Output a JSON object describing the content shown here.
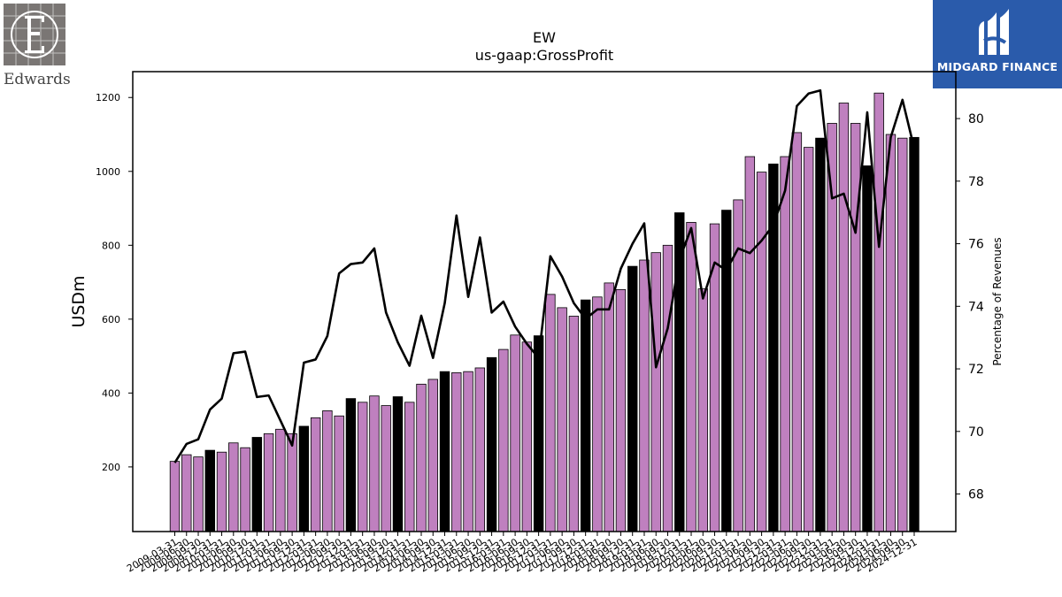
{
  "logos": {
    "left_text": "Edwards",
    "right_text": "MIDGARD FINANCE"
  },
  "colors": {
    "bar_default": "#bf80bf",
    "bar_highlight": "#000000",
    "line": "#000000",
    "brand_blue": "#2a5bab"
  },
  "chart_data": {
    "type": "bar+line",
    "title": "EW",
    "subtitle": "us-gaap:GrossProfit",
    "ylabel": "USDm",
    "y2label": "Percentage of Revenues",
    "ylim": [
      25,
      1270
    ],
    "y2lim": [
      66.8,
      81.5
    ],
    "yticks": [
      200,
      400,
      600,
      800,
      1000,
      1200
    ],
    "y2ticks": [
      68,
      70,
      72,
      74,
      76,
      78,
      80
    ],
    "grid": false,
    "categories": [
      "2009-03-31",
      "2009-06-30",
      "2009-09-30",
      "2009-12-31",
      "2010-03-31",
      "2010-06-30",
      "2010-09-30",
      "2010-12-31",
      "2011-03-31",
      "2011-06-30",
      "2011-09-30",
      "2011-12-31",
      "2012-03-31",
      "2012-06-30",
      "2012-09-30",
      "2012-12-31",
      "2013-03-31",
      "2013-06-30",
      "2013-09-30",
      "2013-12-31",
      "2014-03-31",
      "2014-06-30",
      "2014-09-30",
      "2014-12-31",
      "2015-03-31",
      "2015-06-30",
      "2015-09-30",
      "2015-12-31",
      "2016-03-31",
      "2016-06-30",
      "2016-09-30",
      "2016-12-31",
      "2017-03-31",
      "2017-06-30",
      "2017-09-30",
      "2017-12-31",
      "2018-03-31",
      "2018-06-30",
      "2018-09-30",
      "2018-12-31",
      "2019-03-31",
      "2019-06-30",
      "2019-09-30",
      "2019-12-31",
      "2020-03-31",
      "2020-06-30",
      "2020-09-30",
      "2020-12-31",
      "2021-03-31",
      "2021-06-30",
      "2021-09-30",
      "2021-12-31",
      "2022-03-31",
      "2022-06-30",
      "2022-09-30",
      "2022-12-31",
      "2023-03-31",
      "2023-06-30",
      "2023-09-30",
      "2023-12-31",
      "2024-03-31",
      "2024-06-30",
      "2024-09-30",
      "2024-12-31"
    ],
    "series": [
      {
        "kind": "bar",
        "values": [
          215,
          233,
          227,
          245,
          240,
          265,
          252,
          280,
          290,
          302,
          290,
          310,
          333,
          352,
          338,
          385,
          375,
          392,
          366,
          390,
          375,
          424,
          437,
          458,
          455,
          458,
          468,
          496,
          518,
          557,
          538,
          555,
          667,
          631,
          608,
          652,
          660,
          698,
          680,
          743,
          760,
          780,
          800,
          888,
          862,
          682,
          858,
          895,
          923,
          1040,
          998,
          1020,
          1040,
          1105,
          1065,
          1090,
          1130,
          1185,
          1130,
          1015,
          1212,
          1100,
          1090,
          1092
        ],
        "highlighted": [
          false,
          false,
          false,
          true,
          false,
          false,
          false,
          true,
          false,
          false,
          false,
          true,
          false,
          false,
          false,
          true,
          false,
          false,
          false,
          true,
          false,
          false,
          false,
          true,
          false,
          false,
          false,
          true,
          false,
          false,
          false,
          true,
          false,
          false,
          false,
          true,
          false,
          false,
          false,
          true,
          false,
          false,
          false,
          true,
          false,
          false,
          false,
          true,
          false,
          false,
          false,
          true,
          false,
          false,
          false,
          true,
          false,
          false,
          false,
          true,
          false,
          false,
          false,
          true
        ]
      },
      {
        "kind": "line",
        "axis": "right",
        "values": [
          69.0,
          69.6,
          69.75,
          70.7,
          71.05,
          72.5,
          72.55,
          71.1,
          71.15,
          70.35,
          69.55,
          72.2,
          72.3,
          73.05,
          75.05,
          75.35,
          75.4,
          75.85,
          73.8,
          72.85,
          72.1,
          73.7,
          72.35,
          74.1,
          76.9,
          74.3,
          76.2,
          73.8,
          74.15,
          73.35,
          72.8,
          72.35,
          75.6,
          74.95,
          74.1,
          73.6,
          73.9,
          73.9,
          75.2,
          76.0,
          76.65,
          72.05,
          73.3,
          75.5,
          76.5,
          74.25,
          75.4,
          75.15,
          75.85,
          75.7,
          76.1,
          76.6,
          77.7,
          80.4,
          80.8,
          80.9,
          77.45,
          77.6,
          76.35,
          80.2,
          75.9,
          79.4,
          80.6,
          79.05
        ]
      }
    ]
  }
}
